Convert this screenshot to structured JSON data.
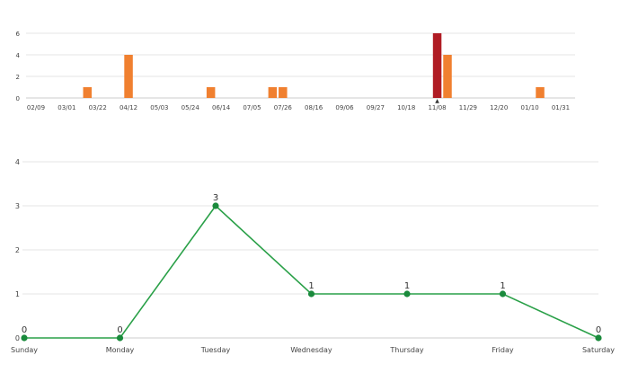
{
  "colors": {
    "bar": "#f08030",
    "bar_highlight": "#b01c24",
    "line": "#2aa048",
    "point": "#1a8a3c",
    "grid": "#e6e6e6",
    "axis_text": "#444444",
    "label_text": "#333333"
  },
  "chart_data": [
    {
      "type": "bar",
      "title": "",
      "xlabel": "",
      "ylabel": "",
      "ylim": [
        0,
        6
      ],
      "y_ticks": [
        "0",
        "2",
        "4",
        "6"
      ],
      "x_tick_labels": [
        "02/09",
        "03/01",
        "03/22",
        "04/12",
        "05/03",
        "05/24",
        "06/14",
        "07/05",
        "07/26",
        "08/16",
        "09/06",
        "09/27",
        "10/18",
        "11/08",
        "11/29",
        "12/20",
        "01/10",
        "01/31"
      ],
      "grid": true,
      "bars": [
        {
          "x": "03/15",
          "value": 1,
          "highlight": false
        },
        {
          "x": "04/12",
          "value": 4,
          "highlight": false
        },
        {
          "x": "06/07",
          "value": 1,
          "highlight": false
        },
        {
          "x": "07/19",
          "value": 1,
          "highlight": false
        },
        {
          "x": "07/26",
          "value": 1,
          "highlight": false
        },
        {
          "x": "11/08",
          "value": 6,
          "highlight": true
        },
        {
          "x": "11/15",
          "value": 4,
          "highlight": false
        },
        {
          "x": "01/17",
          "value": 1,
          "highlight": false
        }
      ],
      "marker": "▲",
      "marker_at": "11/08"
    },
    {
      "type": "line",
      "title": "",
      "xlabel": "",
      "ylabel": "",
      "ylim": [
        0,
        4
      ],
      "y_ticks": [
        "0",
        "1",
        "2",
        "3",
        "4"
      ],
      "categories": [
        "Sunday",
        "Monday",
        "Tuesday",
        "Wednesday",
        "Thursday",
        "Friday",
        "Saturday"
      ],
      "values": [
        0,
        0,
        3,
        1,
        1,
        1,
        0
      ],
      "data_labels": [
        "0",
        "0",
        "3",
        "1",
        "1",
        "1",
        "0"
      ],
      "grid": true
    }
  ]
}
